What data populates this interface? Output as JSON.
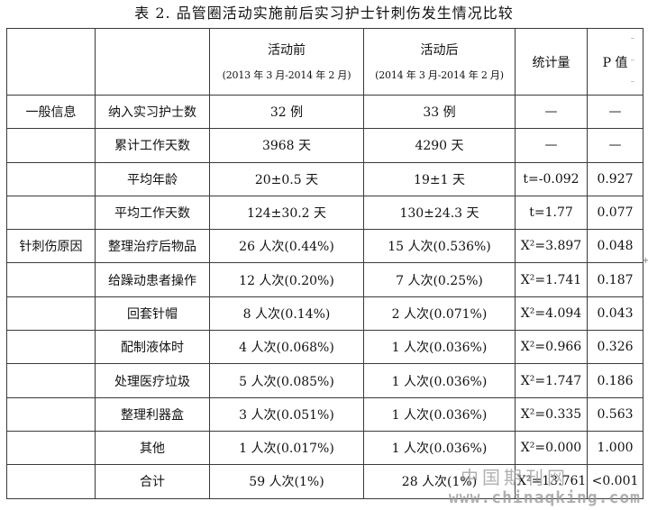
{
  "caption": "表 2.  品管圈活动实施前后实习护士针刺伤发生情况比较",
  "header": {
    "before_label": "活动前",
    "before_range": "(2013 年 3 月-2014 年 2 月)",
    "after_label": "活动后",
    "after_range": "(2014 年 3 月-2014 年 2 月)",
    "stat_label": "统计量",
    "p_label": "P 值"
  },
  "groups": {
    "general": "一般信息",
    "cause": "针刺伤原因"
  },
  "rows": [
    {
      "item": "纳入实习护士数",
      "before": "32 例",
      "after": "33 例",
      "stat": "—",
      "p": "—"
    },
    {
      "item": "累计工作天数",
      "before": "3968 天",
      "after": "4290 天",
      "stat": "—",
      "p": "—"
    },
    {
      "item": "平均年龄",
      "before": "20±0.5 天",
      "after": "19±1 天",
      "stat": "t=-0.092",
      "p": "0.927"
    },
    {
      "item": "平均工作天数",
      "before": "124±30.2 天",
      "after": "130±24.3 天",
      "stat": "t=1.77",
      "p": "0.077"
    },
    {
      "item": "整理治疗后物品",
      "before": "26 人次(0.44%)",
      "after": "15 人次(0.536%)",
      "stat": "X²=3.897",
      "p": "0.048"
    },
    {
      "item": "给躁动患者操作",
      "before": "12 人次(0.20%)",
      "after": "7 人次(0.25%)",
      "stat": "X²=1.741",
      "p": "0.187"
    },
    {
      "item": "回套针帽",
      "before": "8 人次(0.14%)",
      "after": "2 人次(0.071%)",
      "stat": "X²=4.094",
      "p": "0.043"
    },
    {
      "item": "配制液体时",
      "before": "4 人次(0.068%)",
      "after": "1 人次(0.036%)",
      "stat": "X²=0.966",
      "p": "0.326"
    },
    {
      "item": "处理医疗垃圾",
      "before": "5 人次(0.085%)",
      "after": "1 人次(0.036%)",
      "stat": "X²=1.747",
      "p": "0.186"
    },
    {
      "item": "整理利器盒",
      "before": "3 人次(0.051%)",
      "after": "1 人次(0.036%)",
      "stat": "X²=0.335",
      "p": "0.563"
    },
    {
      "item": "其他",
      "before": "1 人次(0.017%)",
      "after": "1 人次(0.036%)",
      "stat": "X²=0.000",
      "p": "1.000"
    },
    {
      "item": "合计",
      "before": "59 人次(1%)",
      "after": "28 人次(1%)",
      "stat": "X²=13.761",
      "p": "<0.001"
    }
  ],
  "watermark": {
    "logo": "中国期刊网",
    "url": "www.chinaqking.com"
  },
  "edge_mark": "+"
}
